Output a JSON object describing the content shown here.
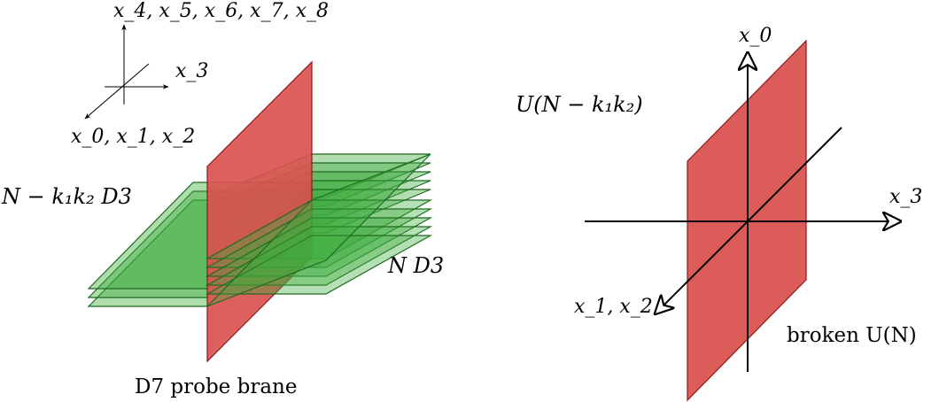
{
  "left_panel": {
    "axes": {
      "vertical": "x_4, x_5, x_6, x_7, x_8",
      "horizontal": "x_3",
      "diagonal": "x_0, x_1, x_2"
    },
    "stack_label": "N − k₁k₂ D3",
    "n_stack_label": "N D3",
    "probe_label": "D7 probe brane"
  },
  "right_panel": {
    "axes": {
      "vertical": "x_0",
      "horizontal": "x_3",
      "diagonal": "x_1, x_2"
    },
    "gauge_label": "U(N − k₁k₂)",
    "broken_label": "broken U(N)"
  },
  "colors": {
    "d7_fill": "#d9534f",
    "d7_stroke": "#8b1a1a",
    "d3_fill": "#3cab3c",
    "d3_stroke": "#1f6b1f"
  }
}
